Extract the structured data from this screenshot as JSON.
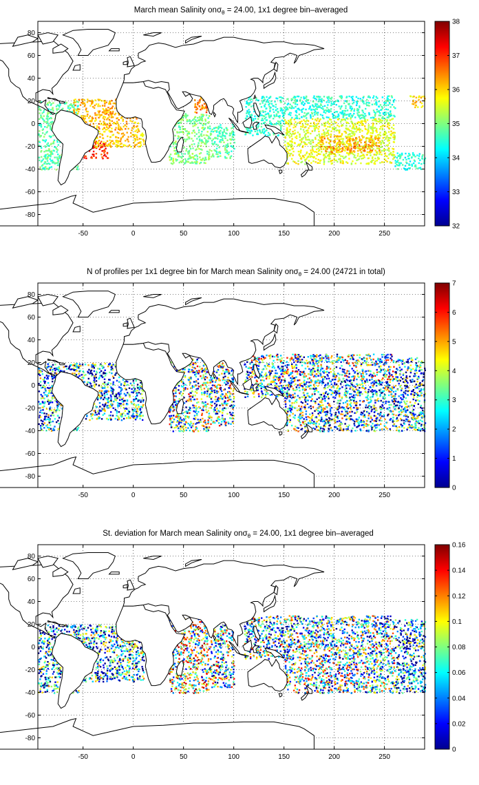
{
  "panels": [
    {
      "id": "mean",
      "title_prefix": "March mean Salinity on",
      "title_suffix": " = 24.00, 1x1 degree bin–averaged",
      "colorbar_ticks": [
        "32",
        "33",
        "34",
        "35",
        "36",
        "37",
        "38"
      ],
      "cmin": 32,
      "cmax": 38
    },
    {
      "id": "count",
      "title_prefix": "N of profiles per 1x1 degree bin for March mean Salinity on",
      "title_suffix": " = 24.00 (24721 in total)",
      "colorbar_ticks": [
        "0",
        "1",
        "2",
        "3",
        "4",
        "5",
        "6",
        "7"
      ],
      "cmin": 0,
      "cmax": 7
    },
    {
      "id": "std",
      "title_prefix": "St. deviation for March mean Salinity on",
      "title_suffix": " = 24.00, 1x1 degree bin–averaged",
      "colorbar_ticks": [
        "0",
        "0.02",
        "0.04",
        "0.06",
        "0.08",
        "0.1",
        "0.12",
        "0.14",
        "0.16"
      ],
      "cmin": 0,
      "cmax": 0.16
    }
  ],
  "sigma": {
    "symbol": "σ",
    "subscript": "θ"
  },
  "x_ticks": [
    "-50",
    "0",
    "50",
    "100",
    "150",
    "200",
    "250"
  ],
  "y_ticks": [
    "80",
    "60",
    "40",
    "20",
    "0",
    "-20",
    "-40",
    "-60",
    "-80"
  ],
  "chart_data": [
    {
      "type": "heatmap",
      "title": "March mean Salinity on σθ = 24.00, 1x1 degree bin–averaged",
      "xlim": [
        -95,
        290
      ],
      "ylim": [
        -90,
        90
      ],
      "x_ticks": [
        -50,
        0,
        50,
        100,
        150,
        200,
        250
      ],
      "y_ticks": [
        -80,
        -60,
        -40,
        -20,
        0,
        20,
        40,
        60,
        80
      ],
      "grid": true,
      "colorbar": {
        "colormap": "jet",
        "range": [
          32,
          38
        ]
      },
      "regions": [
        {
          "lon": [
            -95,
            -55
          ],
          "lat": [
            -40,
            20
          ],
          "value": 34.8
        },
        {
          "lon": [
            -60,
            5
          ],
          "lat": [
            -5,
            22
          ],
          "value": 36.2
        },
        {
          "lon": [
            -50,
            -25
          ],
          "lat": [
            -30,
            -15
          ],
          "value": 37.0
        },
        {
          "lon": [
            -40,
            10
          ],
          "lat": [
            -20,
            -5
          ],
          "value": 36.0
        },
        {
          "lon": [
            35,
            75
          ],
          "lat": [
            -35,
            10
          ],
          "value": 35.0
        },
        {
          "lon": [
            60,
            75
          ],
          "lat": [
            10,
            25
          ],
          "value": 36.5
        },
        {
          "lon": [
            75,
            100
          ],
          "lat": [
            -30,
            0
          ],
          "value": 34.8
        },
        {
          "lon": [
            110,
            260
          ],
          "lat": [
            5,
            25
          ],
          "value": 34.5
        },
        {
          "lon": [
            110,
            150
          ],
          "lat": [
            -10,
            5
          ],
          "value": 34.6
        },
        {
          "lon": [
            150,
            260
          ],
          "lat": [
            -35,
            5
          ],
          "value": 35.6
        },
        {
          "lon": [
            185,
            245
          ],
          "lat": [
            -25,
            -10
          ],
          "value": 36.3
        },
        {
          "lon": [
            260,
            290
          ],
          "lat": [
            -40,
            -25
          ],
          "value": 34.5
        },
        {
          "lon": [
            275,
            290
          ],
          "lat": [
            15,
            25
          ],
          "value": 36.0
        }
      ]
    },
    {
      "type": "heatmap",
      "title": "N of profiles per 1x1 degree bin for March mean Salinity on σθ = 24.00 (24721 in total)",
      "xlim": [
        -95,
        290
      ],
      "ylim": [
        -90,
        90
      ],
      "x_ticks": [
        -50,
        0,
        50,
        100,
        150,
        200,
        250
      ],
      "y_ticks": [
        -80,
        -60,
        -40,
        -20,
        0,
        20,
        40,
        60,
        80
      ],
      "grid": true,
      "colorbar": {
        "colormap": "jet",
        "range": [
          0,
          7
        ]
      },
      "regions": [
        {
          "lon": [
            -95,
            -55
          ],
          "lat": [
            -40,
            20
          ],
          "value": 2
        },
        {
          "lon": [
            -60,
            10
          ],
          "lat": [
            -30,
            20
          ],
          "value": 2
        },
        {
          "lon": [
            35,
            75
          ],
          "lat": [
            -40,
            25
          ],
          "value": 3
        },
        {
          "lon": [
            75,
            100
          ],
          "lat": [
            -35,
            20
          ],
          "value": 3
        },
        {
          "lon": [
            110,
            260
          ],
          "lat": [
            5,
            28
          ],
          "value": 3
        },
        {
          "lon": [
            110,
            150
          ],
          "lat": [
            -10,
            5
          ],
          "value": 3
        },
        {
          "lon": [
            150,
            260
          ],
          "lat": [
            -40,
            5
          ],
          "value": 2.5
        },
        {
          "lon": [
            260,
            290
          ],
          "lat": [
            -40,
            25
          ],
          "value": 2
        }
      ]
    },
    {
      "type": "heatmap",
      "title": "St. deviation for March mean Salinity on σθ = 24.00, 1x1 degree bin–averaged",
      "xlim": [
        -95,
        290
      ],
      "ylim": [
        -90,
        90
      ],
      "x_ticks": [
        -50,
        0,
        50,
        100,
        150,
        200,
        250
      ],
      "y_ticks": [
        -80,
        -60,
        -40,
        -20,
        0,
        20,
        40,
        60,
        80
      ],
      "grid": true,
      "colorbar": {
        "colormap": "jet",
        "range": [
          0,
          0.16
        ]
      },
      "regions": [
        {
          "lon": [
            -95,
            -55
          ],
          "lat": [
            -40,
            20
          ],
          "value": 0.04
        },
        {
          "lon": [
            -60,
            10
          ],
          "lat": [
            -30,
            20
          ],
          "value": 0.05
        },
        {
          "lon": [
            35,
            75
          ],
          "lat": [
            -40,
            25
          ],
          "value": 0.09
        },
        {
          "lon": [
            75,
            100
          ],
          "lat": [
            -35,
            20
          ],
          "value": 0.07
        },
        {
          "lon": [
            110,
            260
          ],
          "lat": [
            5,
            28
          ],
          "value": 0.06
        },
        {
          "lon": [
            110,
            150
          ],
          "lat": [
            -10,
            5
          ],
          "value": 0.07
        },
        {
          "lon": [
            150,
            260
          ],
          "lat": [
            -40,
            5
          ],
          "value": 0.07
        },
        {
          "lon": [
            260,
            290
          ],
          "lat": [
            -40,
            25
          ],
          "value": 0.04
        }
      ]
    }
  ]
}
